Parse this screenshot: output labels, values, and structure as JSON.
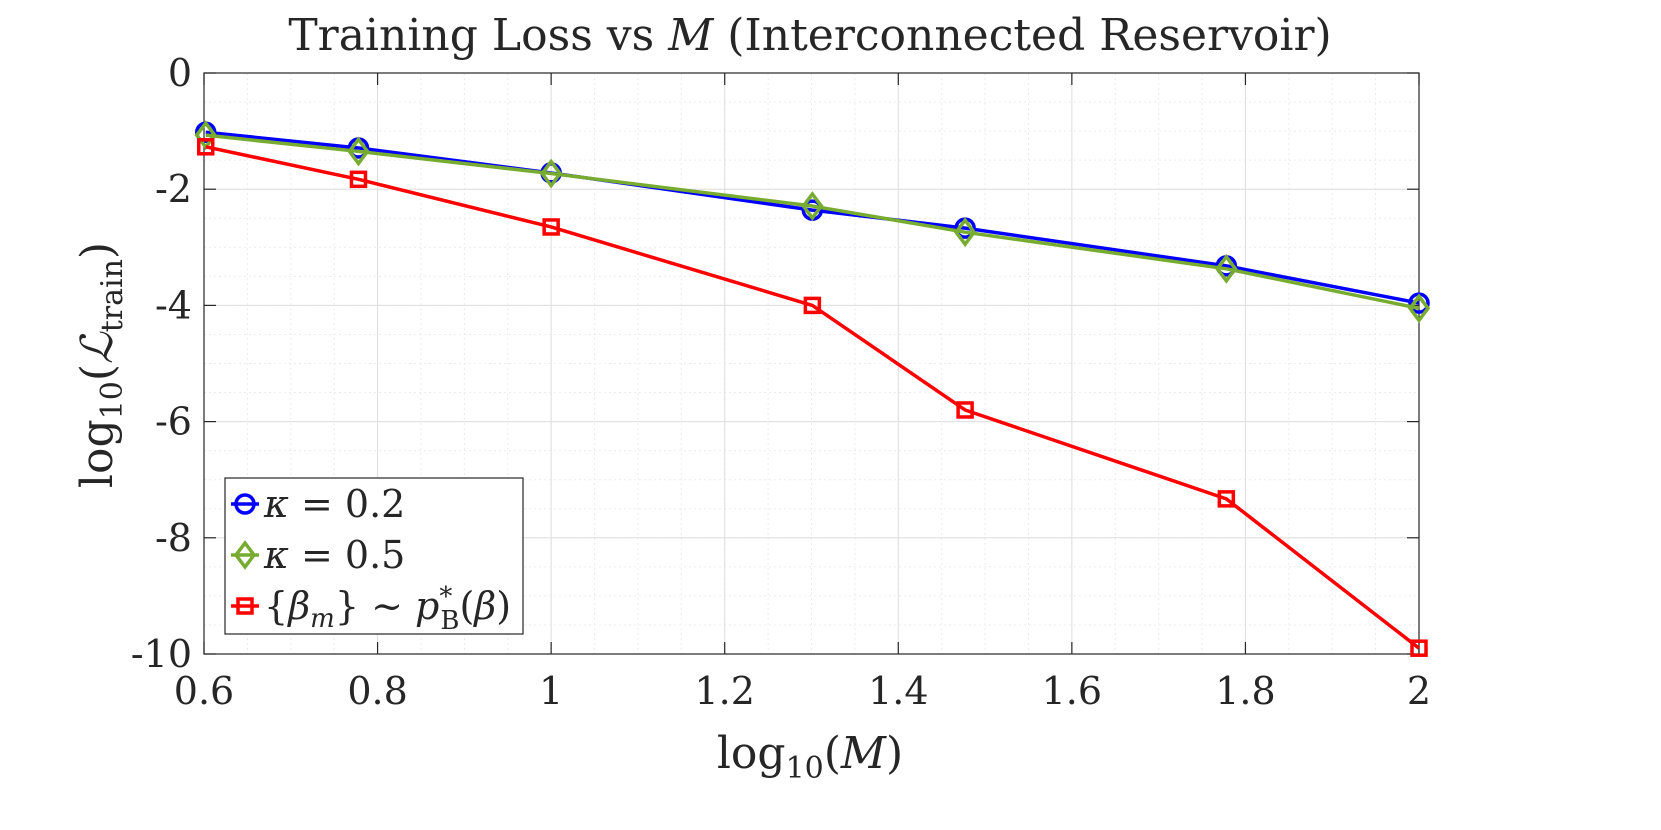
{
  "chart_data": {
    "type": "line",
    "title": {
      "prefix": "Training Loss vs ",
      "var": "M",
      "suffix": " (Interconnected Reservoir)"
    },
    "xlabel": {
      "func": "log",
      "sub": "10",
      "open": "(",
      "var": "M",
      "close": ")"
    },
    "ylabel": {
      "func": "log",
      "sub": "10",
      "open": "(",
      "var": "ℒ",
      "sub2": "train",
      "close": ")"
    },
    "xlim": [
      0.6,
      2.0
    ],
    "ylim": [
      -10,
      0
    ],
    "xticks": [
      0.6,
      0.8,
      1.0,
      1.2,
      1.4,
      1.6,
      1.8,
      2.0
    ],
    "xtick_labels": [
      "0.6",
      "0.8",
      "1",
      "1.2",
      "1.4",
      "1.6",
      "1.8",
      "2"
    ],
    "yticks": [
      0,
      -2,
      -4,
      -6,
      -8,
      -10
    ],
    "ytick_labels": [
      "0",
      "-2",
      "-4",
      "-6",
      "-8",
      "-10"
    ],
    "grid": true,
    "legend_position": "bottom-left",
    "x": [
      0.602,
      0.778,
      1.0,
      1.301,
      1.477,
      1.778,
      2.0
    ],
    "series": [
      {
        "name": "κ = 0.2",
        "legend": {
          "var": "κ",
          "rest": " = 0.2"
        },
        "color": "#0000ff",
        "marker": "circle",
        "values": [
          -1.02,
          -1.29,
          -1.72,
          -2.36,
          -2.67,
          -3.32,
          -3.96
        ]
      },
      {
        "name": "κ = 0.5",
        "legend": {
          "var": "κ",
          "rest": " = 0.5"
        },
        "color": "#77ac30",
        "marker": "diamond",
        "values": [
          -1.07,
          -1.35,
          -1.73,
          -2.29,
          -2.74,
          -3.37,
          -4.05
        ]
      },
      {
        "name": "{βm} ~ p*B(β)",
        "legend": {
          "p1": "{",
          "v1": "β",
          "s1": "m",
          "p2": "} ~ ",
          "v2": "p",
          "sup": "*",
          "s2": "B",
          "p3": "(",
          "v3": "β",
          "p4": ")"
        },
        "color": "#ff0000",
        "marker": "square",
        "values": [
          -1.27,
          -1.83,
          -2.65,
          -4.0,
          -5.8,
          -7.33,
          -9.9
        ]
      }
    ]
  }
}
